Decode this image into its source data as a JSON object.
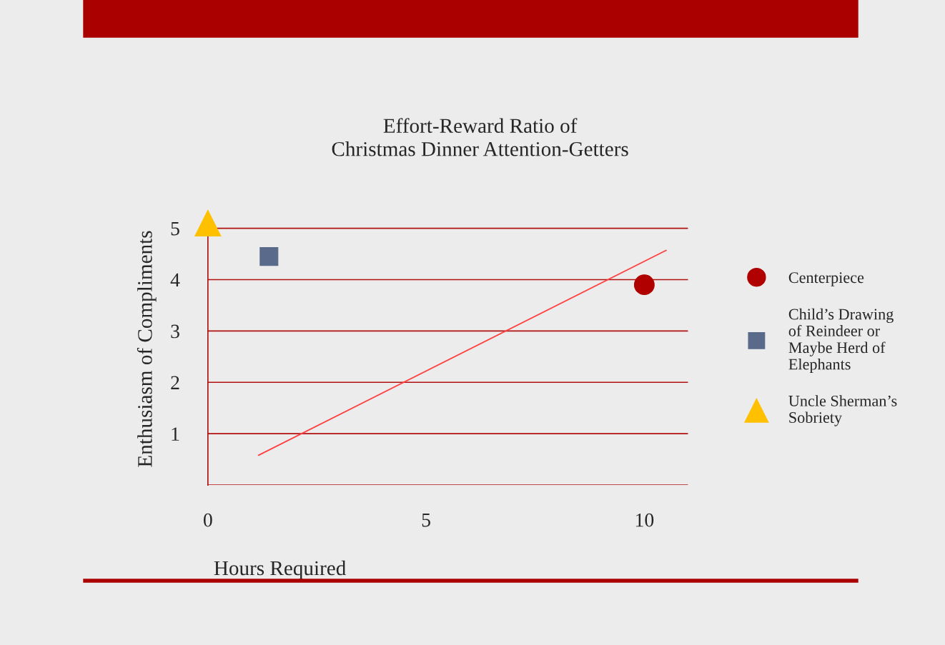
{
  "chart_data": {
    "type": "scatter",
    "title": "Effort-Reward Ratio of\nChristmas Dinner Attention-Getters",
    "xlabel": "Hours Required",
    "ylabel": "Enthusiasm of Compliments",
    "series": [
      {
        "name": "Centerpiece",
        "color": "#b00000",
        "marker": "circle",
        "x": [
          10
        ],
        "values": [
          3.9
        ]
      },
      {
        "name": "Child’s Drawing of Reindeer or Maybe Herd of Elephants",
        "color": "#5a6a8a",
        "marker": "square",
        "x": [
          1.4
        ],
        "values": [
          4.45
        ]
      },
      {
        "name": "Uncle Sherman’s Sobriety",
        "color": "#ffc000",
        "marker": "triangle",
        "x": [
          0
        ],
        "values": [
          5.1
        ]
      },
      {
        "type": "line",
        "color": "#ff4040",
        "x": [
          1.16,
          10.5
        ],
        "values": [
          0.58,
          4.57
        ]
      }
    ],
    "xlim": [
      0,
      11
    ],
    "ylim": [
      0,
      5.3
    ],
    "xticks": [
      0,
      5,
      10
    ],
    "yticks": [
      {
        "value": 0,
        "label": null
      },
      1,
      2,
      3,
      4,
      5
    ],
    "grid": "y",
    "legend": "right"
  }
}
